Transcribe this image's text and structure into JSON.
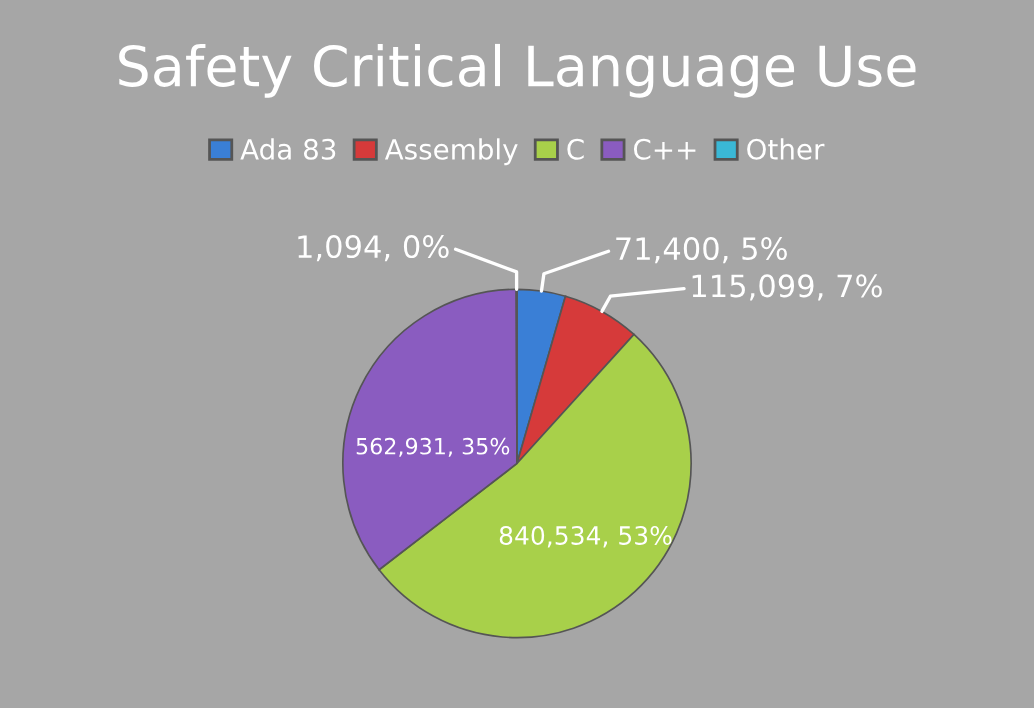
{
  "chart_data": {
    "type": "pie",
    "title": "Safety Critical Language Use",
    "categories": [
      "Ada 83",
      "Assembly",
      "C",
      "C++",
      "Other"
    ],
    "values": [
      71400,
      115099,
      840534,
      562931,
      1094
    ],
    "value_labels": [
      "71,400, 5%",
      "115,099, 7%",
      "840,534, 53%",
      "562,931, 35%",
      "1,094, 0%"
    ],
    "colors": [
      "#3a7fd6",
      "#d63a3a",
      "#a8d04a",
      "#8a5cc0",
      "#3ab8d6"
    ],
    "legend": "top"
  }
}
